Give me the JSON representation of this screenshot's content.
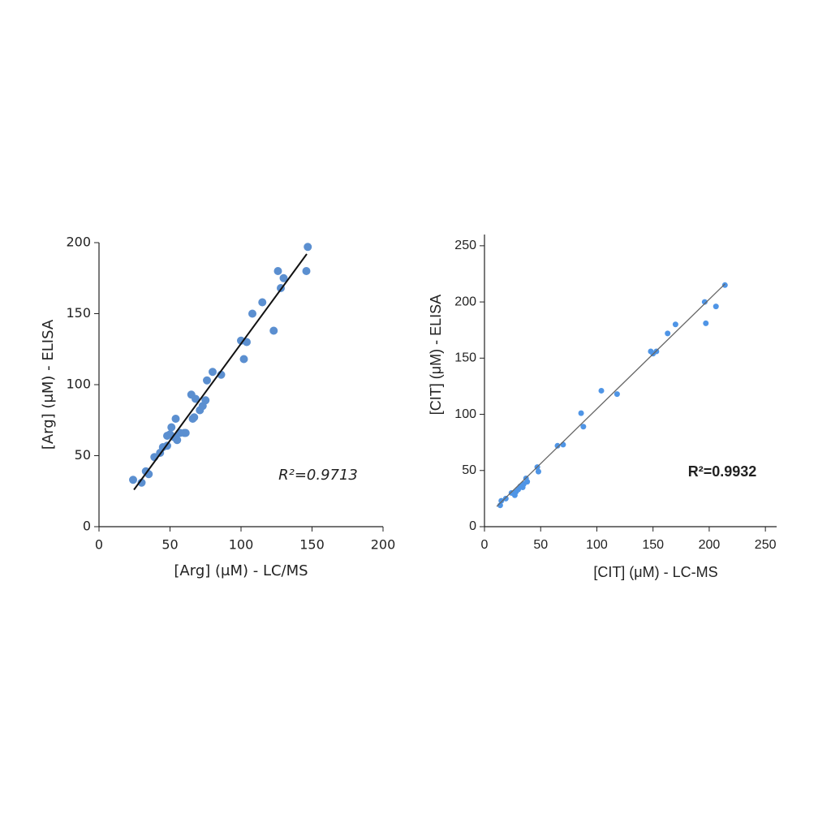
{
  "chart_data": [
    {
      "type": "scatter",
      "xlabel": "[Arg] (μM) - LC/MS",
      "ylabel": "[Arg] (μM) - ELISA",
      "annotation": "R²=0.9713",
      "x": [
        24,
        30,
        33,
        35,
        39,
        43,
        45,
        48,
        48,
        50,
        51,
        53,
        54,
        55,
        57,
        60,
        61,
        65,
        66,
        67,
        68,
        71,
        73,
        75,
        76,
        80,
        86,
        100,
        102,
        104,
        108,
        115,
        123,
        126,
        128,
        130,
        146,
        147
      ],
      "y": [
        33,
        31,
        39,
        37,
        49,
        52,
        56,
        57,
        64,
        65,
        70,
        63,
        76,
        61,
        66,
        66,
        66,
        93,
        76,
        77,
        90,
        82,
        85,
        89,
        103,
        109,
        107,
        131,
        118,
        130,
        150,
        158,
        138,
        180,
        168,
        175,
        180,
        197
      ],
      "color": "#5b8fd0",
      "fit_line": {
        "x": [
          24.6,
          146.3
        ],
        "y": [
          26,
          192
        ],
        "color": "#111111"
      },
      "xlim": [
        0,
        200
      ],
      "ylim": [
        0,
        200
      ],
      "xticks": [
        0,
        50,
        100,
        150,
        200
      ],
      "yticks": [
        0,
        50,
        100,
        150,
        200
      ]
    },
    {
      "type": "scatter",
      "xlabel": "[CIT] (μM) - LC-MS",
      "ylabel": "[CIT] (μM) - ELISA",
      "annotation": "R²=0.9932",
      "x": [
        14,
        15,
        19,
        24,
        27,
        28,
        30,
        32,
        34,
        35,
        37,
        38,
        47,
        48,
        65,
        70,
        86,
        88,
        104,
        118,
        148,
        150,
        153,
        163,
        170,
        196,
        197,
        206,
        214
      ],
      "y": [
        19,
        23,
        25,
        30,
        28,
        31,
        33,
        36,
        35,
        38,
        43,
        40,
        53,
        49,
        72,
        73,
        101,
        89,
        121,
        118,
        156,
        154,
        156,
        172,
        180,
        200,
        181,
        196,
        215
      ],
      "color": "#4f95e6",
      "fit_line": {
        "x": [
          10.9,
          214
        ],
        "y": [
          18,
          216
        ],
        "color": "#666666"
      },
      "xlim": [
        0,
        260
      ],
      "ylim": [
        0,
        260
      ],
      "xticks": [
        0,
        50,
        100,
        150,
        200,
        250
      ],
      "yticks": [
        0,
        50,
        100,
        150,
        200,
        250
      ]
    }
  ]
}
